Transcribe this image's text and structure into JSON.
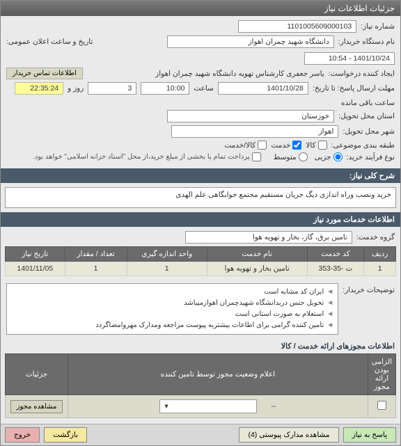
{
  "titlebar": {
    "title": "جزئیات اطلاعات نیاز"
  },
  "header": {
    "req_no_label": "شماره نیاز:",
    "req_no": "1101005609000103",
    "buyer_label": "نام دستگاه خریدار:",
    "buyer": "دانشگاه شهید چمران اهواز",
    "creator_label": "ایجاد کننده درخواست:",
    "creator": "یاسر جعفری کارشناس تهویه دانشگاه شهید چمران اهواز",
    "contact_btn": "اطلاعات تماس خریدار",
    "deadline_label": "مهلت ارسال پاسخ: تا تاریخ:",
    "deadline_date": "1401/10/28",
    "deadline_time_label": "ساعت",
    "deadline_time": "10:00",
    "pub_datetime_label": "تاریخ و ساعت اعلان عمومی:",
    "pub_datetime": "1401/10/24 - 10:54",
    "days_label": "روز و",
    "days": "3",
    "countdown": "22:35:24",
    "remaining_label": "ساعت باقی مانده",
    "province_label": "استان محل تحویل:",
    "province": "خوزستان",
    "city_label": "شهر محل تحویل:",
    "city": "اهواز",
    "subject_cat_label": "طبقه بندی موضوعی:",
    "goods_label": "کالا",
    "service_label": "خدمت",
    "goods_service_label": "کالا/خدمت",
    "purchase_type_label": "نوع فرآیند خرید:",
    "small_label": "جزیی",
    "medium_label": "متوسط",
    "payment_note": "پرداخت تمام یا بخشی از مبلغ خرید،از محل \"اسناد خزانه اسلامی\" خواهد بود."
  },
  "summary": {
    "header": "شرح کلی نیاز:",
    "text": "خرید ونصب وراه اندازی دیگ جریان مستقیم مجتمع خوابگاهی علم الهدی"
  },
  "services": {
    "header": "اطلاعات خدمات مورد نیاز",
    "group_label": "گروه خدمت:",
    "group": "تامین برق، گاز، بخار و تهویه هوا",
    "cols": [
      "ردیف",
      "کد خدمت",
      "نام خدمت",
      "واحد اندازه گیری",
      "تعداد / مقدار",
      "تاریخ نیاز"
    ],
    "rows": [
      [
        "1",
        "ت -35-353",
        "تامین بخار و تهویه هوا",
        "1",
        "1",
        "1401/11/05"
      ]
    ]
  },
  "notes": {
    "label": "توضیحات خریدار:",
    "items": [
      "ایران کد مشابه است",
      "تحویل جنس درب​دانشگاه شهیدچمران اهوازمیباشد",
      "استعلام به صورت استانی است",
      "تامین کننده گرامی برای اطاعات بیشتربه پیوست مراجعه ومدارک مهروامضاگردد"
    ]
  },
  "auth": {
    "header": "اطلاعات مجوزهای ارائه خدمت / کالا",
    "cols": [
      "الزامی بودن ارائه مجوز",
      "اعلام وضعیت مجوز توسط تامین کننده",
      "جزئیات"
    ],
    "status_placeholder": "--",
    "view_btn": "مشاهده مجوز"
  },
  "footer": {
    "reply": "پاسخ به نیاز",
    "attachments": "مشاهده مدارک پیوستی (4)",
    "back": "بازگشت",
    "exit": "خروج"
  },
  "watermark": {
    "line1": "ستاد - سامانه تدارکات الکترونیکی دولت",
    "line2": "۰۲۱ - ۴۱۹۳۴ و ۰۲۱ - ۸۸۳۶۹۲۹۷"
  }
}
